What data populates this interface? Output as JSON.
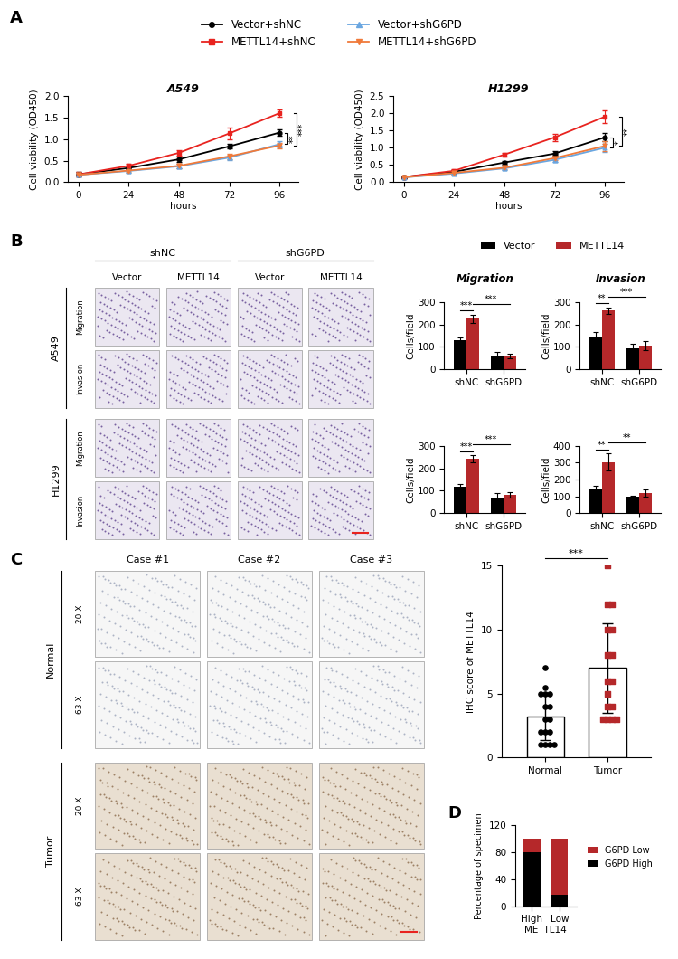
{
  "panel_labels": [
    "A",
    "B",
    "C",
    "D"
  ],
  "chart_data": [
    {
      "type": "line",
      "title": "A549",
      "x_label": "hours",
      "y_label": "Cell viability (OD450)",
      "x": [
        0,
        24,
        48,
        72,
        96
      ],
      "xlim": [
        -5,
        105
      ],
      "xticks": [
        0,
        24,
        48,
        72,
        96
      ],
      "ylim": [
        0,
        2.0
      ],
      "yticks": [
        {
          "value": 0,
          "label": "0.0"
        },
        {
          "value": 0.5,
          "label": "0.5"
        },
        {
          "value": 1.0,
          "label": "1.0"
        },
        {
          "value": 1.5,
          "label": "1.5"
        },
        {
          "value": 2.0,
          "label": "2.0"
        }
      ],
      "legend": "upper center",
      "series": [
        {
          "name": "Vector+shNC",
          "color": "#000000",
          "marker": "circle",
          "values": [
            0.18,
            0.33,
            0.53,
            0.83,
            1.15
          ],
          "errors": [
            0.05,
            0.04,
            0.06,
            0.05,
            0.08
          ]
        },
        {
          "name": "METTL14+shNC",
          "color": "#e8231f",
          "marker": "square",
          "values": [
            0.18,
            0.38,
            0.68,
            1.13,
            1.6
          ],
          "errors": [
            0.05,
            0.05,
            0.07,
            0.13,
            0.08
          ]
        },
        {
          "name": "Vector+shG6PD",
          "color": "#6aa6e0",
          "marker": "triangle_up",
          "values": [
            0.17,
            0.26,
            0.37,
            0.57,
            0.88
          ],
          "errors": [
            0.04,
            0.04,
            0.05,
            0.05,
            0.07
          ]
        },
        {
          "name": "METTL14+shG6PD",
          "color": "#f07a3a",
          "marker": "triangle_down",
          "values": [
            0.17,
            0.27,
            0.38,
            0.6,
            0.85
          ],
          "errors": [
            0.04,
            0.04,
            0.05,
            0.06,
            0.06
          ]
        }
      ],
      "annotations": [
        {
          "text": "**",
          "from": "Vector+shNC",
          "to": "Vector+shG6PD"
        },
        {
          "text": "***",
          "from": "METTL14+shNC",
          "to": "METTL14+shG6PD"
        }
      ]
    },
    {
      "type": "line",
      "title": "H1299",
      "x_label": "hours",
      "y_label": "Cell viability (OD450)",
      "x": [
        0,
        24,
        48,
        72,
        96
      ],
      "xlim": [
        -5,
        105
      ],
      "xticks": [
        0,
        24,
        48,
        72,
        96
      ],
      "ylim": [
        0,
        2.5
      ],
      "yticks": [
        {
          "value": 0,
          "label": "0.0"
        },
        {
          "value": 0.5,
          "label": "0.5"
        },
        {
          "value": 1.0,
          "label": "1.0"
        },
        {
          "value": 1.5,
          "label": "1.5"
        },
        {
          "value": 2.0,
          "label": "2.0"
        },
        {
          "value": 2.5,
          "label": "2.5"
        }
      ],
      "series": [
        {
          "name": "Vector+shNC",
          "color": "#000000",
          "marker": "circle",
          "values": [
            0.15,
            0.3,
            0.57,
            0.83,
            1.3
          ],
          "errors": [
            0.03,
            0.04,
            0.05,
            0.07,
            0.12
          ]
        },
        {
          "name": "METTL14+shNC",
          "color": "#e8231f",
          "marker": "square",
          "values": [
            0.15,
            0.33,
            0.8,
            1.3,
            1.9
          ],
          "errors": [
            0.03,
            0.04,
            0.05,
            0.1,
            0.18
          ]
        },
        {
          "name": "Vector+shG6PD",
          "color": "#6aa6e0",
          "marker": "triangle_up",
          "values": [
            0.14,
            0.25,
            0.4,
            0.65,
            1.0
          ],
          "errors": [
            0.03,
            0.04,
            0.05,
            0.07,
            0.12
          ]
        },
        {
          "name": "METTL14+shG6PD",
          "color": "#f07a3a",
          "marker": "triangle_down",
          "values": [
            0.14,
            0.27,
            0.42,
            0.7,
            1.05
          ],
          "errors": [
            0.03,
            0.04,
            0.05,
            0.06,
            0.15
          ]
        }
      ],
      "annotations": [
        {
          "text": "*",
          "from": "Vector+shNC",
          "to": "Vector+shG6PD"
        },
        {
          "text": "**",
          "from": "METTL14+shNC",
          "to": "METTL14+shG6PD"
        }
      ]
    },
    {
      "type": "bar",
      "title": "Migration",
      "y_label": "Cells/field",
      "categories": [
        "shNC",
        "shG6PD"
      ],
      "ylim": [
        0,
        300
      ],
      "yticks": [
        0,
        100,
        200,
        300
      ],
      "legend": "upper center",
      "series": [
        {
          "name": "Vector",
          "color": "#000000",
          "values": [
            130,
            62
          ],
          "errors": [
            10,
            15
          ]
        },
        {
          "name": "METTL14",
          "color": "#b5282a",
          "values": [
            225,
            60
          ],
          "errors": [
            20,
            10
          ]
        }
      ],
      "annotations": [
        {
          "text": "***",
          "from": [
            "shNC",
            "Vector"
          ],
          "to": [
            "shNC",
            "METTL14"
          ]
        },
        {
          "text": "***",
          "from": [
            "shNC",
            "METTL14"
          ],
          "to": [
            "shG6PD",
            "METTL14"
          ]
        }
      ]
    },
    {
      "type": "bar",
      "title": "Invasion",
      "y_label": "Cells/field",
      "categories": [
        "shNC",
        "shG6PD"
      ],
      "ylim": [
        0,
        300
      ],
      "yticks": [
        0,
        100,
        200,
        300
      ],
      "series": [
        {
          "name": "Vector",
          "color": "#000000",
          "values": [
            145,
            95
          ],
          "errors": [
            20,
            18
          ]
        },
        {
          "name": "METTL14",
          "color": "#b5282a",
          "values": [
            262,
            105
          ],
          "errors": [
            15,
            20
          ]
        }
      ],
      "annotations": [
        {
          "text": "**",
          "from": [
            "shNC",
            "Vector"
          ],
          "to": [
            "shNC",
            "METTL14"
          ]
        },
        {
          "text": "***",
          "from": [
            "shNC",
            "METTL14"
          ],
          "to": [
            "shG6PD",
            "METTL14"
          ]
        }
      ]
    },
    {
      "type": "bar",
      "y_label": "Cells/field",
      "categories": [
        "shNC",
        "shG6PD"
      ],
      "ylim": [
        0,
        300
      ],
      "yticks": [
        0,
        100,
        200,
        300
      ],
      "series": [
        {
          "name": "Vector",
          "color": "#000000",
          "values": [
            117,
            70
          ],
          "errors": [
            12,
            18
          ]
        },
        {
          "name": "METTL14",
          "color": "#b5282a",
          "values": [
            243,
            80
          ],
          "errors": [
            15,
            12
          ]
        }
      ],
      "annotations": [
        {
          "text": "***",
          "from": [
            "shNC",
            "Vector"
          ],
          "to": [
            "shNC",
            "METTL14"
          ]
        },
        {
          "text": "***",
          "from": [
            "shNC",
            "METTL14"
          ],
          "to": [
            "shG6PD",
            "METTL14"
          ]
        }
      ]
    },
    {
      "type": "bar",
      "y_label": "Cells/field",
      "categories": [
        "shNC",
        "shG6PD"
      ],
      "ylim": [
        0,
        400
      ],
      "yticks": [
        0,
        100,
        200,
        300,
        400
      ],
      "series": [
        {
          "name": "Vector",
          "color": "#000000",
          "values": [
            145,
            95
          ],
          "errors": [
            15,
            8
          ]
        },
        {
          "name": "METTL14",
          "color": "#b5282a",
          "values": [
            305,
            120
          ],
          "errors": [
            50,
            22
          ]
        }
      ],
      "annotations": [
        {
          "text": "**",
          "from": [
            "shNC",
            "Vector"
          ],
          "to": [
            "shNC",
            "METTL14"
          ]
        },
        {
          "text": "**",
          "from": [
            "shNC",
            "METTL14"
          ],
          "to": [
            "shG6PD",
            "METTL14"
          ]
        }
      ]
    },
    {
      "type": "bar_scatter",
      "y_label": "IHC score of METTL14",
      "categories": [
        "Normal",
        "Tumor"
      ],
      "values": [
        3.2,
        7.0
      ],
      "errors": [
        1.8,
        3.5
      ],
      "colors": [
        "#000000",
        "#b5282a"
      ],
      "points": [
        [
          7,
          5.5,
          5,
          5,
          5,
          4,
          4,
          3,
          3,
          2,
          2,
          2,
          1,
          1,
          1,
          1
        ],
        [
          15,
          12,
          12,
          10,
          10,
          8,
          8,
          6,
          6,
          5,
          4,
          4,
          3,
          3,
          3,
          3
        ]
      ],
      "ylim": [
        0,
        15
      ],
      "yticks": [
        0,
        5,
        10,
        15
      ],
      "annotations": [
        {
          "text": "***",
          "from": "Normal",
          "to": "Tumor"
        }
      ]
    },
    {
      "type": "bar",
      "stacked": true,
      "x_label": "METTL14",
      "y_label": "Percentage of specimen",
      "categories": [
        "High",
        "Low"
      ],
      "ylim": [
        0,
        120
      ],
      "yticks": [
        0,
        40,
        80,
        120
      ],
      "legend": "right",
      "series": [
        {
          "name": "G6PD High",
          "color": "#000000",
          "values": [
            80,
            17
          ]
        },
        {
          "name": "G6PD Low",
          "color": "#b5282a",
          "values": [
            20,
            83
          ]
        }
      ]
    }
  ],
  "image_panels": [
    {
      "panel": "B",
      "column_groups": [
        {
          "label": "shNC",
          "columns": [
            "Vector",
            "METTL14"
          ]
        },
        {
          "label": "shG6PD",
          "columns": [
            "Vector",
            "METTL14"
          ]
        }
      ],
      "row_groups": [
        {
          "label": "A549",
          "rows": [
            "Migration",
            "Invasion"
          ]
        },
        {
          "label": "H1299",
          "rows": [
            "Migration",
            "Invasion"
          ]
        }
      ]
    },
    {
      "panel": "C",
      "columns": [
        "Case #1",
        "Case #2",
        "Case #3"
      ],
      "row_groups": [
        {
          "label": "Normal",
          "rows": [
            "20 X",
            "63 X"
          ]
        },
        {
          "label": "Tumor",
          "rows": [
            "20 X",
            "63 X"
          ]
        }
      ]
    }
  ]
}
